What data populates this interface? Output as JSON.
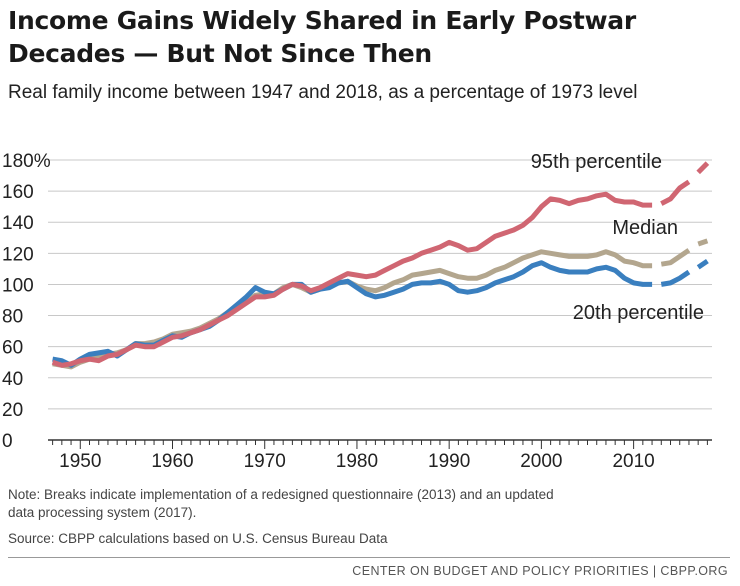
{
  "chart_data": {
    "type": "line",
    "title": "Income Gains Widely Shared in Early Postwar Decades — But Not Since Then",
    "subtitle": "Real family income between 1947 and 2018, as a percentage of 1973 level",
    "xlabel": "",
    "ylabel": "",
    "xlim": [
      1946.5,
      2018.5
    ],
    "ylim": [
      0,
      180
    ],
    "x_ticks": [
      1950,
      1960,
      1970,
      1980,
      1990,
      2000,
      2010
    ],
    "y_ticks": [
      0,
      20,
      40,
      60,
      80,
      100,
      120,
      140,
      160,
      180
    ],
    "y_tick_labels": [
      "0",
      "20",
      "40",
      "60",
      "80",
      "100",
      "120",
      "140",
      "160",
      "180%"
    ],
    "grid": "horizontal",
    "x": [
      1947,
      1948,
      1949,
      1950,
      1951,
      1952,
      1953,
      1954,
      1955,
      1956,
      1957,
      1958,
      1959,
      1960,
      1961,
      1962,
      1963,
      1964,
      1965,
      1966,
      1967,
      1968,
      1969,
      1970,
      1971,
      1972,
      1973,
      1974,
      1975,
      1976,
      1977,
      1978,
      1979,
      1980,
      1981,
      1982,
      1983,
      1984,
      1985,
      1986,
      1987,
      1988,
      1989,
      1990,
      1991,
      1992,
      1993,
      1994,
      1995,
      1996,
      1997,
      1998,
      1999,
      2000,
      2001,
      2002,
      2003,
      2004,
      2005,
      2006,
      2007,
      2008,
      2009,
      2010,
      2011,
      2012,
      2013,
      2014,
      2015,
      2016,
      2017,
      2018
    ],
    "series": [
      {
        "name": "95th percentile",
        "color": "#d06672",
        "values": [
          50,
          48,
          49,
          51,
          52,
          51,
          54,
          55,
          58,
          61,
          60,
          60,
          63,
          66,
          67,
          69,
          71,
          74,
          77,
          80,
          84,
          88,
          92,
          92,
          93,
          97,
          100,
          99,
          96,
          98,
          101,
          104,
          107,
          106,
          105,
          106,
          109,
          112,
          115,
          117,
          120,
          122,
          124,
          127,
          125,
          122,
          123,
          127,
          131,
          133,
          135,
          138,
          143,
          150,
          155,
          154,
          152,
          154,
          155,
          157,
          158,
          154,
          153,
          153,
          151,
          151,
          152,
          155,
          162,
          166,
          172,
          178
        ]
      },
      {
        "name": "Median",
        "color": "#b3a68e",
        "values": [
          49,
          48,
          47,
          50,
          52,
          53,
          55,
          56,
          58,
          62,
          62,
          63,
          65,
          68,
          69,
          70,
          72,
          75,
          78,
          82,
          85,
          89,
          93,
          94,
          94,
          98,
          100,
          98,
          95,
          97,
          99,
          101,
          102,
          99,
          97,
          96,
          98,
          101,
          103,
          106,
          107,
          108,
          109,
          107,
          105,
          104,
          104,
          106,
          109,
          111,
          114,
          117,
          119,
          121,
          120,
          119,
          118,
          118,
          118,
          119,
          121,
          119,
          115,
          114,
          112,
          112,
          113,
          114,
          118,
          122,
          126,
          128
        ]
      },
      {
        "name": "20th percentile",
        "color": "#3a7fbf",
        "values": [
          52,
          51,
          48,
          52,
          55,
          56,
          57,
          54,
          58,
          62,
          61,
          61,
          64,
          67,
          66,
          69,
          71,
          73,
          77,
          82,
          87,
          92,
          98,
          95,
          94,
          97,
          100,
          100,
          95,
          97,
          98,
          101,
          102,
          98,
          94,
          92,
          93,
          95,
          97,
          100,
          101,
          101,
          102,
          100,
          96,
          95,
          96,
          98,
          101,
          103,
          105,
          108,
          112,
          114,
          111,
          109,
          108,
          108,
          108,
          110,
          111,
          109,
          104,
          101,
          100,
          100,
          100,
          101,
          104,
          108,
          111,
          115
        ]
      }
    ],
    "breaks": [
      2013,
      2017
    ],
    "annotations": [
      "95th percentile",
      "Median",
      "20th percentile"
    ]
  },
  "texts": {
    "title_line1": "Income Gains Widely Shared in Early Postwar",
    "title_line2": "Decades — But Not Since Then",
    "subtitle": "Real family income between 1947 and 2018, as a percentage of 1973 level",
    "note_line1": "Note: Breaks indicate implementation of a redesigned questionnaire (2013) and an updated",
    "note_line2": "data processing system (2017).",
    "source": "Source: CBPP calculations based on U.S. Census Bureau Data",
    "footer": "CENTER ON BUDGET AND POLICY PRIORITIES | CBPP.ORG"
  }
}
